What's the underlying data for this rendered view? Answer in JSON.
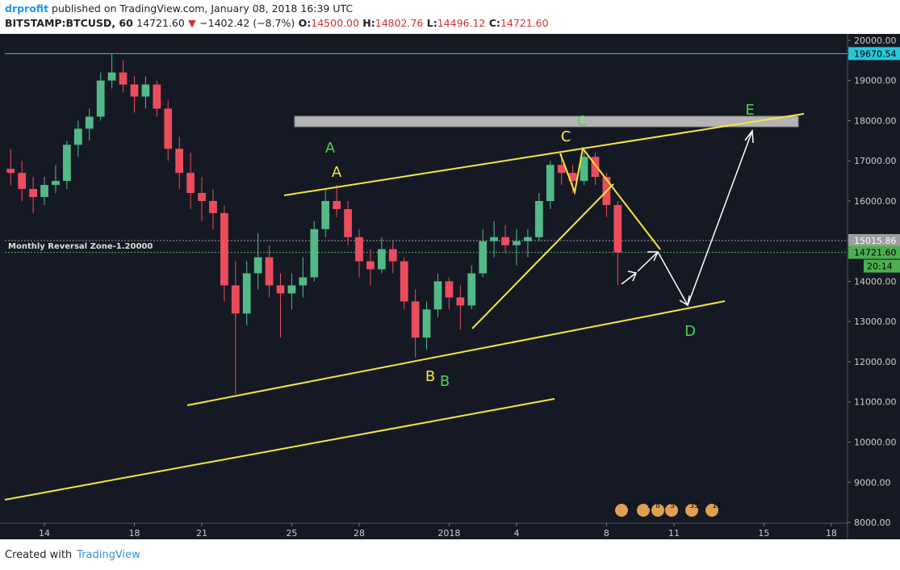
{
  "header": {
    "author": "drprofit",
    "published": "published on TradingView.com, January 08, 2018 16:39 UTC",
    "symbol": "BITSTAMP:BTCUSD, 60",
    "last": "14721.60",
    "arrow": "▼",
    "change": "−1402.42 (−8.7%)",
    "ohlc": [
      {
        "label": "O:",
        "value": "14500.00"
      },
      {
        "label": "H:",
        "value": "14802.76"
      },
      {
        "label": "L:",
        "value": "14496.12"
      },
      {
        "label": "C:",
        "value": "14721.60"
      }
    ]
  },
  "chart_data": {
    "type": "candlestick",
    "x": [
      12.5,
      13,
      13.5,
      14,
      14.5,
      15,
      15.5,
      16,
      16.5,
      17,
      17.5,
      18,
      18.5,
      19,
      19.5,
      20,
      20.5,
      21,
      21.5,
      22,
      22.5,
      23,
      23.5,
      24,
      24.5,
      25,
      25.5,
      26,
      26.5,
      27,
      27.5,
      28,
      28.5,
      29,
      29.5,
      30,
      30.5,
      31,
      31.5,
      32,
      32.5,
      33,
      33.5,
      34,
      34.5,
      35,
      35.5,
      36,
      36.5,
      37,
      37.5,
      38,
      38.5,
      39,
      39.5
    ],
    "open": [
      16800,
      16700,
      16300,
      16100,
      16400,
      16500,
      17400,
      17800,
      18100,
      19000,
      19200,
      18900,
      18600,
      18900,
      18300,
      17300,
      16700,
      16200,
      16000,
      15700,
      13900,
      13200,
      14200,
      14600,
      13900,
      13700,
      13900,
      14100,
      15300,
      16000,
      15800,
      15100,
      14500,
      14300,
      14800,
      14500,
      13500,
      12600,
      13300,
      14000,
      13600,
      13400,
      14200,
      15000,
      15100,
      14900,
      15000,
      15100,
      16000,
      16900,
      16700,
      16500,
      17100,
      16600,
      15900
    ],
    "high": [
      17300,
      17000,
      16600,
      16600,
      16900,
      17500,
      18000,
      18300,
      19200,
      19660,
      19500,
      19100,
      19100,
      19000,
      18500,
      17600,
      17200,
      16600,
      16300,
      15900,
      14500,
      14500,
      15200,
      14900,
      14200,
      14200,
      14600,
      15500,
      16300,
      16400,
      16000,
      15300,
      14800,
      15100,
      15000,
      14600,
      13800,
      13500,
      14200,
      14100,
      13900,
      14400,
      15300,
      15500,
      15400,
      15300,
      15300,
      16200,
      17000,
      17200,
      16900,
      17300,
      17200,
      16700,
      16000
    ],
    "low": [
      16400,
      16000,
      15700,
      15900,
      16200,
      16300,
      17100,
      17500,
      18000,
      18800,
      18700,
      18200,
      18300,
      18100,
      17000,
      16300,
      15800,
      15500,
      15300,
      13500,
      11200,
      12900,
      13800,
      13600,
      12600,
      13300,
      13600,
      14000,
      15100,
      15600,
      14900,
      14100,
      13900,
      14200,
      14200,
      13300,
      12100,
      12300,
      13100,
      13300,
      12800,
      13300,
      14100,
      14600,
      14700,
      14400,
      14600,
      15000,
      15800,
      16400,
      16200,
      16400,
      16400,
      15600,
      13900
    ],
    "close": [
      16700,
      16300,
      16100,
      16400,
      16500,
      17400,
      17800,
      18100,
      19000,
      19200,
      18900,
      18600,
      18900,
      18300,
      17300,
      16700,
      16200,
      16000,
      15700,
      13900,
      13200,
      14200,
      14600,
      13900,
      13700,
      13900,
      14100,
      15300,
      16000,
      15800,
      15100,
      14500,
      14300,
      14800,
      14500,
      13500,
      12600,
      13300,
      14000,
      13600,
      13400,
      14200,
      15000,
      15100,
      14900,
      15000,
      15100,
      16000,
      16900,
      16700,
      16500,
      17100,
      16600,
      15900,
      14721.6
    ],
    "up_color": "#53b987",
    "down_color": "#eb4d5c",
    "xlim": [
      12.24,
      49.72
    ],
    "xticks": [
      14,
      18,
      21,
      25,
      28,
      {
        "value": 32,
        "label": "2018"
      },
      {
        "value": 35,
        "label": "4"
      },
      {
        "value": 39,
        "label": "8"
      },
      {
        "value": 42,
        "label": "11"
      },
      {
        "value": 46,
        "label": "15"
      },
      {
        "value": 49,
        "label": "18"
      }
    ],
    "ylim": [
      7980,
      20160
    ],
    "yticks": [
      {
        "value": 8000,
        "label": "8000.00"
      },
      {
        "value": 9000,
        "label": "9000.00"
      },
      {
        "value": 10000,
        "label": "10000.00"
      },
      {
        "value": 11000,
        "label": "11000.00"
      },
      {
        "value": 12000,
        "label": "12000.00"
      },
      {
        "value": 13000,
        "label": "13000.00"
      },
      {
        "value": 14000,
        "label": "14000.00"
      },
      {
        "value": 15000,
        "label": "15000.00"
      },
      {
        "value": 16000,
        "label": "16000.00"
      },
      {
        "value": 17000,
        "label": "17000.00"
      },
      {
        "value": 18000,
        "label": "18000.00"
      },
      {
        "value": 19000,
        "label": "19000.00"
      },
      {
        "value": 20000,
        "label": "20000.00"
      }
    ],
    "price_lines": [
      {
        "value": 19670.54,
        "label": "19670.54",
        "color": "#26c6da"
      },
      {
        "value": 15015.86,
        "label": "15015.86",
        "color": "#9e9e9e"
      },
      {
        "value": 14721.6,
        "label": "14721.60",
        "color": "#4caf50"
      }
    ],
    "countdown": "20:14",
    "zone_label": "Monthly Reversal Zone-1.20000",
    "annotations": [
      {
        "text": "A",
        "color": "#4cd44c"
      },
      {
        "text": "A",
        "color": "#f5e642"
      },
      {
        "text": "C",
        "color": "#f5e642"
      },
      {
        "text": "C",
        "color": "#4cd44c"
      },
      {
        "text": "B",
        "color": "#f5e642"
      },
      {
        "text": "B",
        "color": "#4cd44c"
      },
      {
        "text": "D",
        "color": "#4cd44c"
      },
      {
        "text": "E",
        "color": "#4cd44c"
      }
    ]
  },
  "events": [
    "3",
    "2",
    "8",
    "5",
    "33",
    "11"
  ],
  "footer": {
    "created": "Created with",
    "brand": "TradingView"
  }
}
